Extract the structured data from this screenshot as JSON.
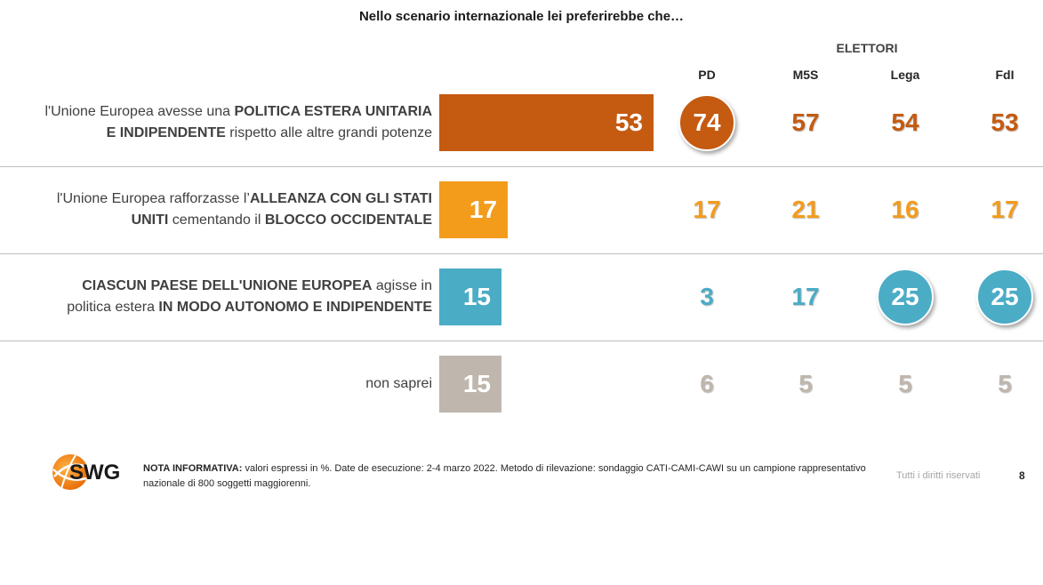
{
  "chart_data": {
    "type": "table",
    "title": "Nello scenario internazionale lei preferirebbe che…",
    "group_label": "ELETTORI",
    "columns": [
      "PD",
      "M5S",
      "Lega",
      "FdI"
    ],
    "rows": [
      {
        "segments": [
          {
            "t": "l'Unione Europea avesse una ",
            "b": false
          },
          {
            "t": "POLITICA ESTERA UNITARIA",
            "b": true
          },
          {
            "br": true
          },
          {
            "t": "E INDIPENDENTE",
            "b": true
          },
          {
            "t": " rispetto alle altre grandi potenze",
            "b": false
          }
        ],
        "total": 53,
        "values": [
          74,
          57,
          54,
          53
        ],
        "highlight": [
          true,
          false,
          false,
          false
        ],
        "color": "#c55a11"
      },
      {
        "segments": [
          {
            "t": "l'Unione Europea rafforzasse l’",
            "b": false
          },
          {
            "t": "ALLEANZA CON GLI STATI",
            "b": true
          },
          {
            "br": true
          },
          {
            "t": "UNITI",
            "b": true
          },
          {
            "t": " cementando il ",
            "b": false
          },
          {
            "t": "BLOCCO OCCIDENTALE",
            "b": true
          }
        ],
        "total": 17,
        "values": [
          17,
          21,
          16,
          17
        ],
        "highlight": [
          false,
          false,
          false,
          false
        ],
        "color": "#f39c1c"
      },
      {
        "segments": [
          {
            "t": "CIASCUN PAESE DELL'UNIONE EUROPEA",
            "b": true
          },
          {
            "t": " agisse in",
            "b": false
          },
          {
            "br": true
          },
          {
            "t": "politica estera ",
            "b": false
          },
          {
            "t": "IN MODO AUTONOMO E INDIPENDENTE",
            "b": true
          }
        ],
        "total": 15,
        "values": [
          3,
          17,
          25,
          25
        ],
        "highlight": [
          false,
          false,
          true,
          true
        ],
        "color": "#4bacc6"
      },
      {
        "segments": [
          {
            "t": "non saprei",
            "b": false
          }
        ],
        "total": 15,
        "values": [
          6,
          5,
          5,
          5
        ],
        "highlight": [
          false,
          false,
          false,
          false
        ],
        "color": "#bfb6ad"
      }
    ]
  },
  "footer": {
    "logo_text": "SWG",
    "note_bold": "NOTA INFORMATIVA:",
    "note_text": " valori espressi in %. Date de esecuzione: 2-4 marzo 2022. Metodo di rilevazione: sondaggio CATI-CAMI-CAWI su un campione rappresentativo nazionale di 800 soggetti maggiorenni.",
    "rights": "Tutti i diritti riservati",
    "page_number": "8"
  },
  "colors": {
    "logo_orange": "#f28c1f",
    "separator": "#bfbfbf"
  }
}
